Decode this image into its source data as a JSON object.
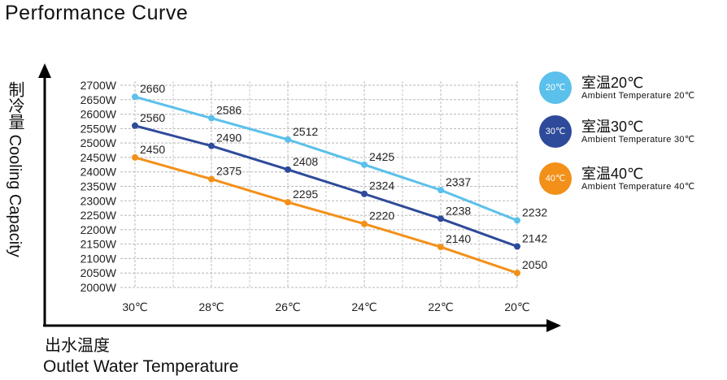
{
  "chart_data": {
    "type": "line",
    "title": "Performance Curve",
    "ylabel_cn": "制冷量",
    "ylabel_en": "Cooling Capacity",
    "xlabel_cn": "出水温度",
    "xlabel_en": "Outlet Water Temperature",
    "categories": [
      "30℃",
      "28℃",
      "26℃",
      "24℃",
      "22℃",
      "20℃"
    ],
    "yticks": [
      "2700W",
      "2650W",
      "2600W",
      "2550W",
      "2500W",
      "2450W",
      "2400W",
      "2350W",
      "2300W",
      "2250W",
      "2200W",
      "2150W",
      "2100W",
      "2050W",
      "2000W"
    ],
    "ylim": [
      2000,
      2700
    ],
    "grid": true,
    "series": [
      {
        "name_cn": "室温20℃",
        "name_en": "Ambient Temperature 20℃",
        "badge": "20℃",
        "color": "#5BC0EB",
        "values": [
          2660,
          2586,
          2512,
          2425,
          2337,
          2232
        ]
      },
      {
        "name_cn": "室温30℃",
        "name_en": "Ambient Temperature 30℃",
        "badge": "30℃",
        "color": "#2E4A9A",
        "values": [
          2560,
          2490,
          2408,
          2324,
          2238,
          2142
        ]
      },
      {
        "name_cn": "室温40℃",
        "name_en": "Ambient Temperature 40℃",
        "badge": "40℃",
        "color": "#F39019",
        "values": [
          2450,
          2375,
          2295,
          2220,
          2140,
          2050
        ]
      }
    ]
  }
}
